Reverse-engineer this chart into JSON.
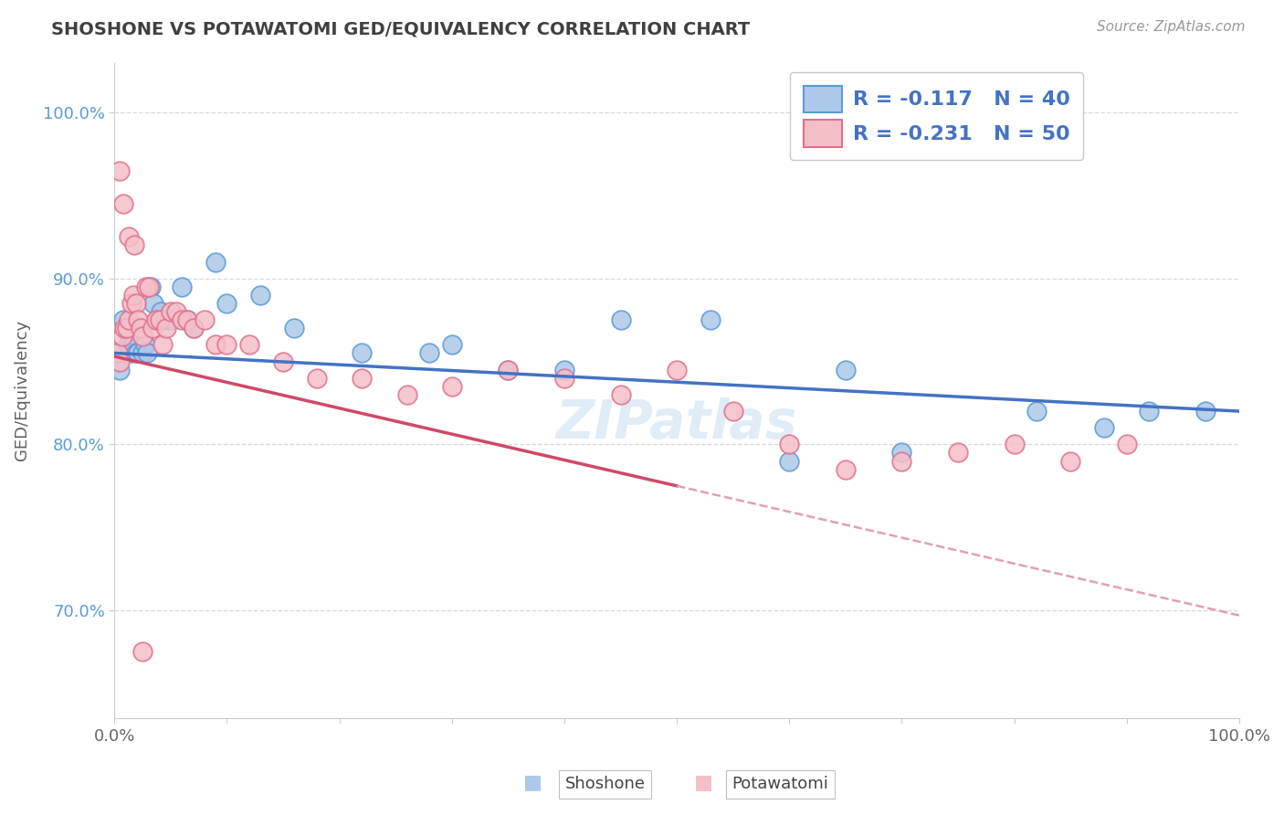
{
  "title": "SHOSHONE VS POTAWATOMI GED/EQUIVALENCY CORRELATION CHART",
  "source": "Source: ZipAtlas.com",
  "ylabel": "GED/Equivalency",
  "shoshone_R": "-0.117",
  "shoshone_N": "40",
  "potawatomi_R": "-0.231",
  "potawatomi_N": "50",
  "xlim": [
    0.0,
    1.0
  ],
  "ylim": [
    0.635,
    1.03
  ],
  "yticks": [
    0.7,
    0.8,
    0.9,
    1.0
  ],
  "ytick_labels": [
    "70.0%",
    "80.0%",
    "90.0%",
    "100.0%"
  ],
  "shoshone_color": "#adc8e8",
  "shoshone_edge_color": "#5b9bd5",
  "potawatomi_color": "#f5bfc8",
  "potawatomi_edge_color": "#e07090",
  "shoshone_line_color": "#4472c4",
  "potawatomi_line_solid_color": "#d04868",
  "potawatomi_line_dash_color": "#e0a0b4",
  "background_color": "#ffffff",
  "grid_color": "#d8d8d8",
  "title_color": "#404040",
  "source_color": "#999999",
  "ylabel_color": "#606060",
  "ytick_color": "#5b9bd5",
  "xtick_color": "#666666",
  "legend_edge_color": "#c8c8c8",
  "legend_text_color": "#4472c4",
  "bottom_legend_text_color": "#444444",
  "shoshone_x": [
    0.003,
    0.005,
    0.008,
    0.01,
    0.012,
    0.015,
    0.017,
    0.019,
    0.021,
    0.023,
    0.025,
    0.027,
    0.029,
    0.032,
    0.035,
    0.038,
    0.041,
    0.045,
    0.05,
    0.06,
    0.065,
    0.07,
    0.09,
    0.1,
    0.13,
    0.16,
    0.22,
    0.28,
    0.3,
    0.35,
    0.4,
    0.45,
    0.53,
    0.6,
    0.65,
    0.7,
    0.82,
    0.88,
    0.92,
    0.97
  ],
  "shoshone_y": [
    0.855,
    0.845,
    0.875,
    0.87,
    0.86,
    0.855,
    0.86,
    0.855,
    0.855,
    0.87,
    0.855,
    0.86,
    0.855,
    0.895,
    0.885,
    0.875,
    0.88,
    0.875,
    0.875,
    0.895,
    0.875,
    0.87,
    0.91,
    0.885,
    0.89,
    0.87,
    0.855,
    0.855,
    0.86,
    0.845,
    0.845,
    0.875,
    0.875,
    0.79,
    0.845,
    0.795,
    0.82,
    0.81,
    0.82,
    0.82
  ],
  "potawatomi_x": [
    0.003,
    0.005,
    0.007,
    0.009,
    0.011,
    0.013,
    0.015,
    0.017,
    0.019,
    0.021,
    0.023,
    0.025,
    0.028,
    0.031,
    0.034,
    0.037,
    0.04,
    0.043,
    0.046,
    0.05,
    0.055,
    0.06,
    0.065,
    0.07,
    0.08,
    0.09,
    0.1,
    0.12,
    0.15,
    0.18,
    0.22,
    0.26,
    0.3,
    0.35,
    0.4,
    0.45,
    0.5,
    0.55,
    0.6,
    0.65,
    0.7,
    0.75,
    0.8,
    0.85,
    0.9,
    0.005,
    0.008,
    0.013,
    0.018,
    0.025
  ],
  "potawatomi_y": [
    0.855,
    0.85,
    0.865,
    0.87,
    0.87,
    0.875,
    0.885,
    0.89,
    0.885,
    0.875,
    0.87,
    0.865,
    0.895,
    0.895,
    0.87,
    0.875,
    0.875,
    0.86,
    0.87,
    0.88,
    0.88,
    0.875,
    0.875,
    0.87,
    0.875,
    0.86,
    0.86,
    0.86,
    0.85,
    0.84,
    0.84,
    0.83,
    0.835,
    0.845,
    0.84,
    0.83,
    0.845,
    0.82,
    0.8,
    0.785,
    0.79,
    0.795,
    0.8,
    0.79,
    0.8,
    0.965,
    0.945,
    0.925,
    0.92,
    0.675
  ]
}
